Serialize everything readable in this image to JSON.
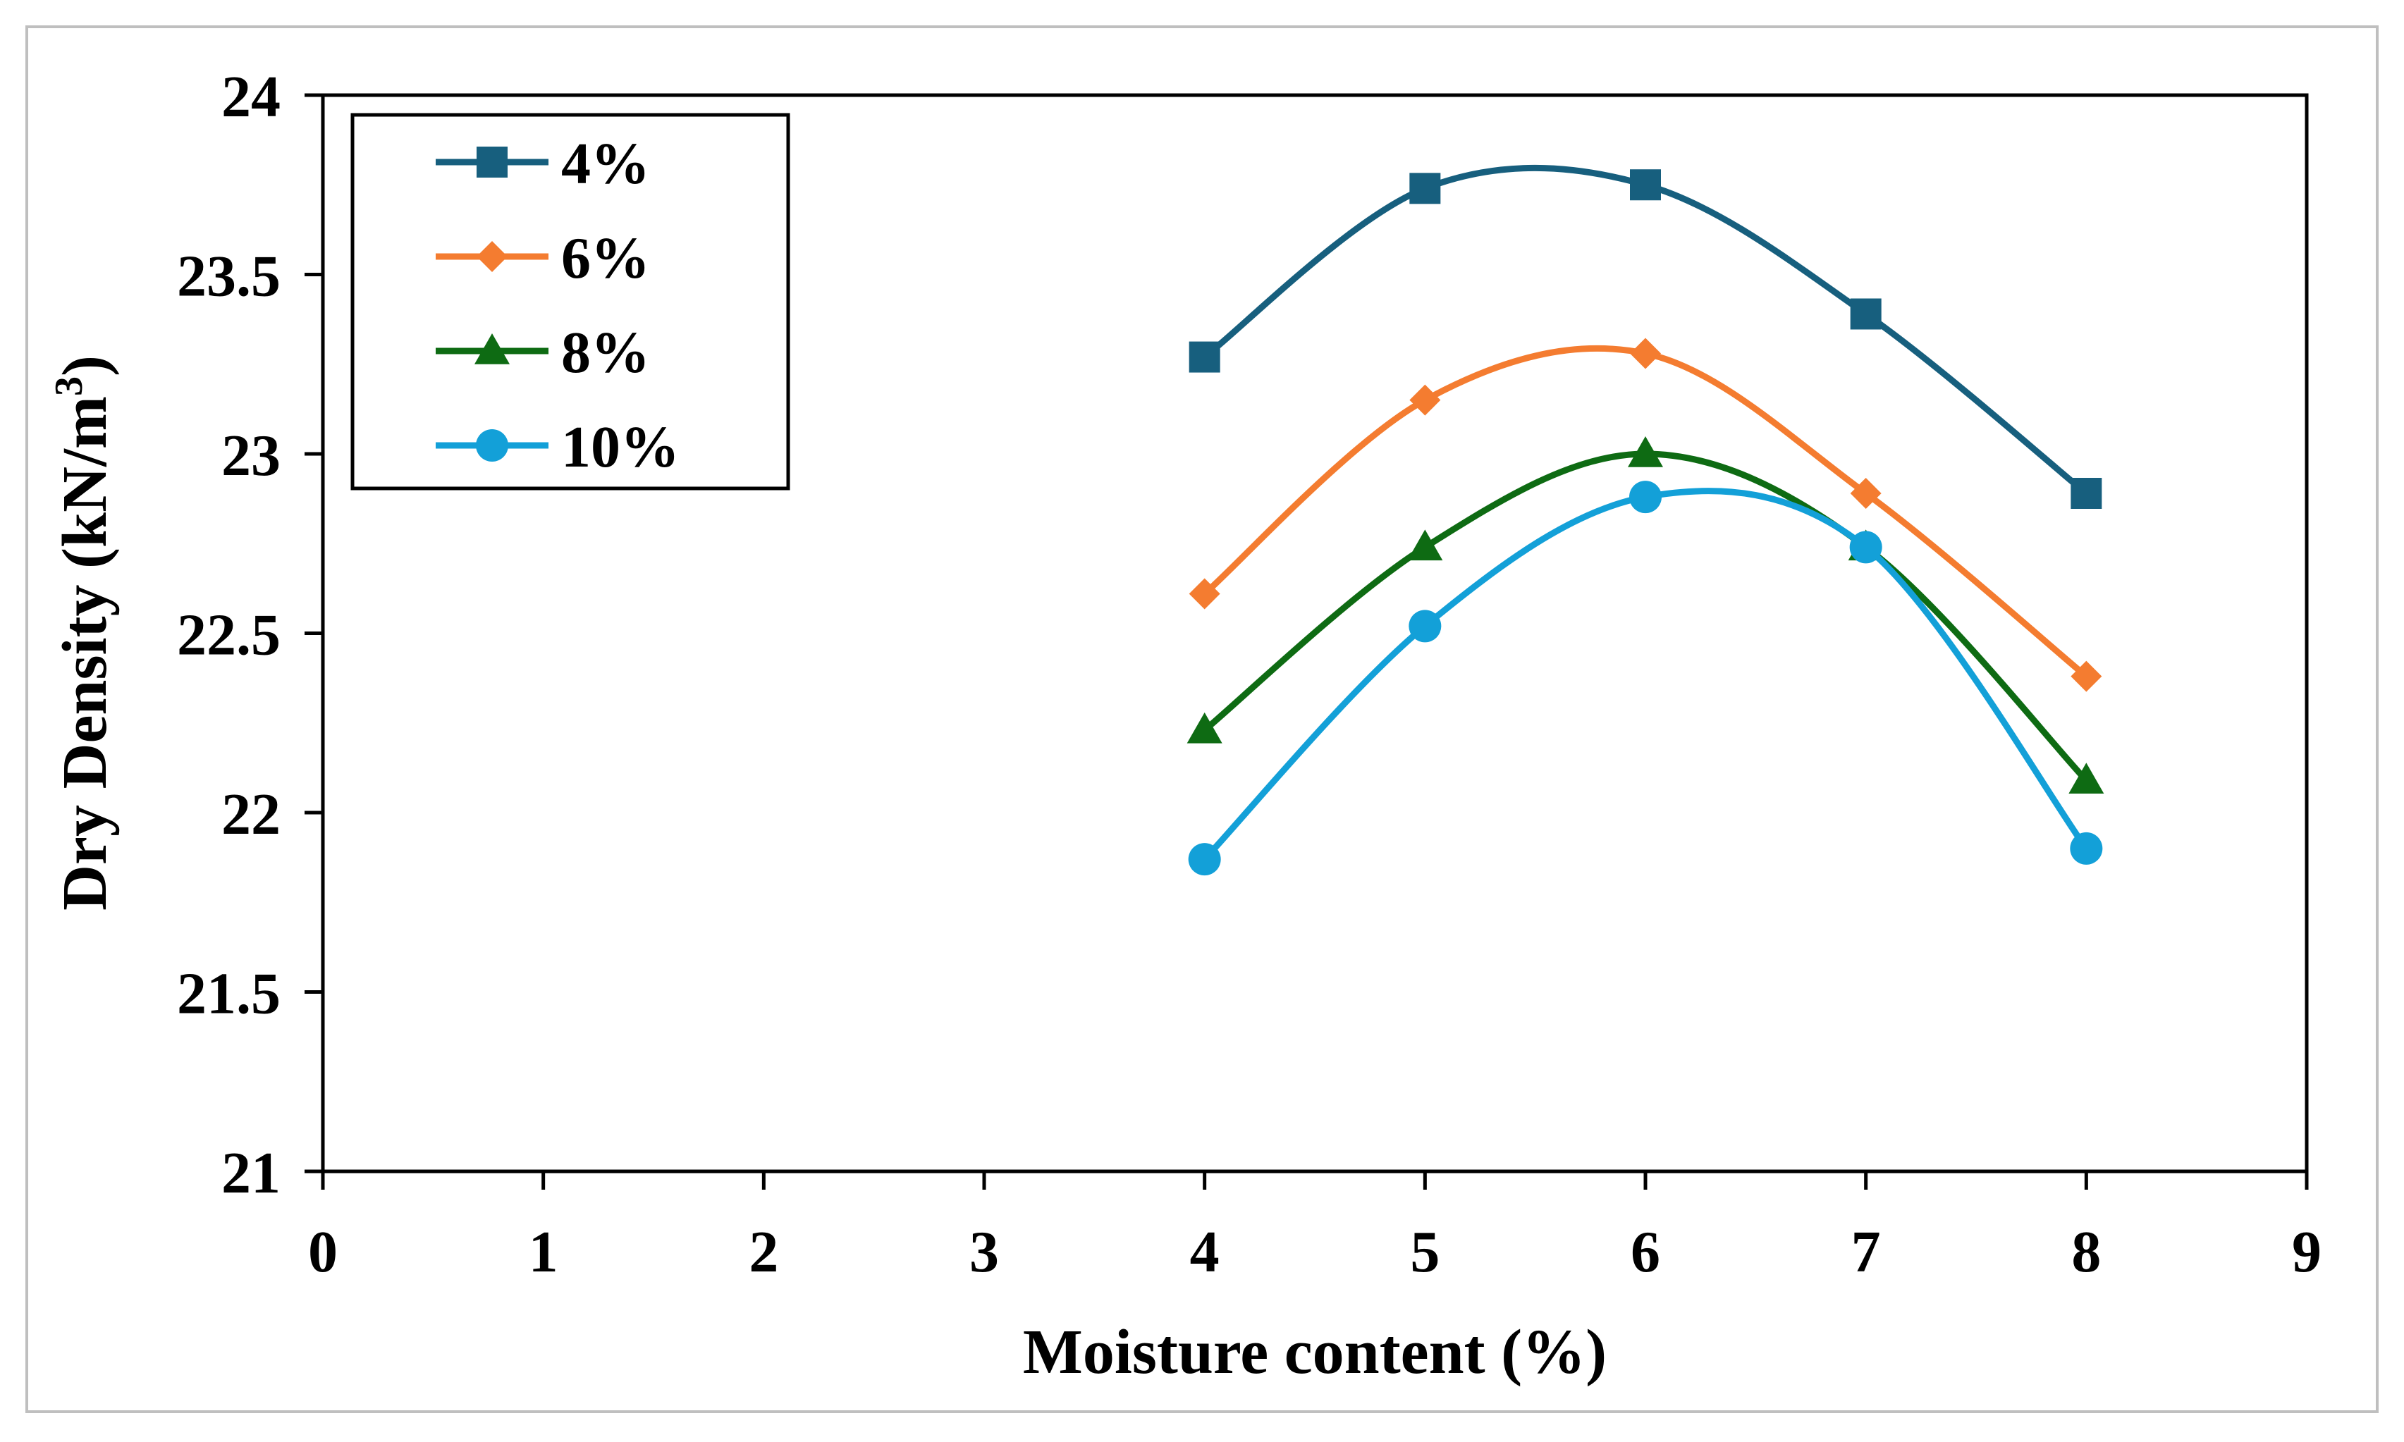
{
  "chart_data": {
    "type": "line",
    "smooth": true,
    "title": "",
    "xlabel": "Moisture content (%)",
    "ylabel": "Dry Density (kN/m",
    "ylabel_superscript": "3",
    "ylabel_close": ")",
    "xlim": [
      0,
      9
    ],
    "ylim": [
      21,
      24
    ],
    "x_ticks": [
      "0",
      "1",
      "2",
      "3",
      "4",
      "5",
      "6",
      "7",
      "8",
      "9"
    ],
    "y_ticks": [
      "21",
      "21.5",
      "22",
      "22.5",
      "23",
      "23.5",
      "24"
    ],
    "grid": false,
    "legend_position": "top-left",
    "x": [
      4,
      5,
      6,
      7,
      8
    ],
    "series": [
      {
        "name": "4%",
        "color": "#175f7e",
        "marker": "square",
        "values": [
          23.27,
          23.74,
          23.75,
          23.39,
          22.89
        ]
      },
      {
        "name": "6%",
        "color": "#f47c30",
        "marker": "diamond",
        "values": [
          22.61,
          23.15,
          23.28,
          22.89,
          22.38
        ]
      },
      {
        "name": "8%",
        "color": "#0e6b13",
        "marker": "triangle",
        "values": [
          22.23,
          22.74,
          23.0,
          22.74,
          22.09
        ]
      },
      {
        "name": "10%",
        "color": "#13a0d8",
        "marker": "circle",
        "values": [
          21.87,
          22.52,
          22.88,
          22.74,
          21.9
        ]
      }
    ]
  }
}
